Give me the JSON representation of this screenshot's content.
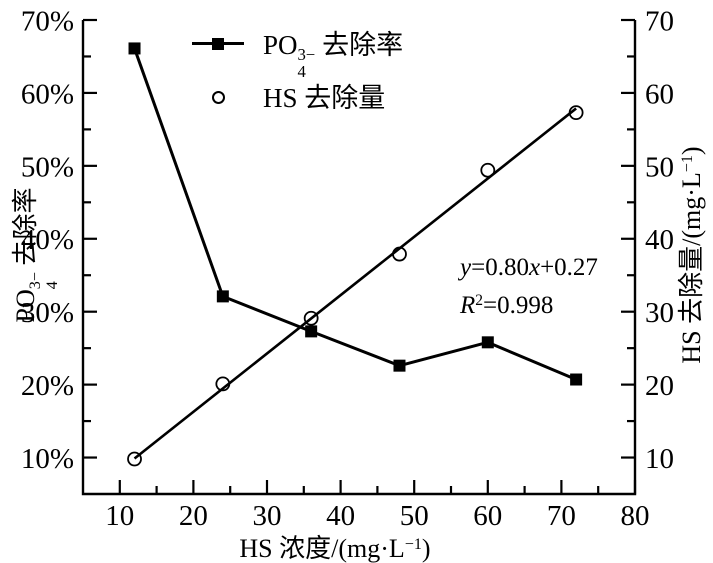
{
  "colors": {
    "ink": "#000000",
    "background": "#ffffff"
  },
  "labels": {
    "legend1": {
      "base": "PO",
      "sup": "3−",
      "sub": "4",
      "rest": " 去除率"
    },
    "legend2": {
      "text": "HS 去除量"
    },
    "ylabel_left": {
      "base": "PO",
      "sup": "3−",
      "sub": "4",
      "rest": " 去除率"
    },
    "ylabel_right": {
      "base": "HS 去除量/(mg·L",
      "sup": "−1",
      "close": ")"
    },
    "xlabel": {
      "base": "HS 浓度/(mg·L",
      "sup": "−1",
      "close": ")"
    },
    "annotation": {
      "eq_y": "y",
      "eq_mid": "=0.80",
      "eq_x": "x",
      "eq_end": "+0.27",
      "r2_base": "R",
      "r2_sup": "2",
      "r2_rest": "=0.998"
    }
  },
  "chart_data": {
    "type": "line",
    "title": "",
    "xlabel": "HS 浓度/(mg·L−1)",
    "ylabel_left": "PO4 3− 去除率",
    "ylabel_right": "HS 去除量/(mg·L−1)",
    "xlim": [
      5,
      80
    ],
    "ylim_left": [
      5,
      70
    ],
    "ylim_right": [
      5,
      70
    ],
    "x_ticks": [
      10,
      20,
      30,
      40,
      50,
      60,
      70,
      80
    ],
    "x_tick_labels": [
      "10",
      "20",
      "30",
      "40",
      "50",
      "60",
      "70",
      "80"
    ],
    "x_minor_ticks": [
      15,
      25,
      35,
      45,
      55,
      65,
      75
    ],
    "y_ticks": [
      10,
      20,
      30,
      40,
      50,
      60,
      70
    ],
    "y_tick_labels_left": [
      "10%",
      "20%",
      "30%",
      "40%",
      "50%",
      "60%",
      "70%"
    ],
    "y_tick_labels_right": [
      "10",
      "20",
      "30",
      "40",
      "50",
      "60",
      "70"
    ],
    "y_minor_ticks": [
      15,
      25,
      35,
      45,
      55,
      65
    ],
    "x_values": [
      12,
      24,
      36,
      48,
      60,
      72
    ],
    "series": [
      {
        "name": "PO4 3− 去除率",
        "axis": "left",
        "unit": "%",
        "marker": "filled-square",
        "connect": true,
        "values": [
          66.1,
          32.1,
          27.3,
          22.6,
          25.8,
          20.7
        ]
      },
      {
        "name": "HS 去除量",
        "axis": "right",
        "unit": "mg·L−1",
        "marker": "open-circle",
        "connect": false,
        "values": [
          9.8,
          20.1,
          29.1,
          37.9,
          49.4,
          57.3
        ]
      }
    ],
    "fit_line": {
      "applies_to": "HS 去除量",
      "equation": "y=0.80x+0.27",
      "r_squared": "R2=0.998",
      "slope": 0.8,
      "intercept": 0.27,
      "x_start": 12,
      "x_end": 72
    },
    "legend_position": "top-inside",
    "grid": false
  }
}
